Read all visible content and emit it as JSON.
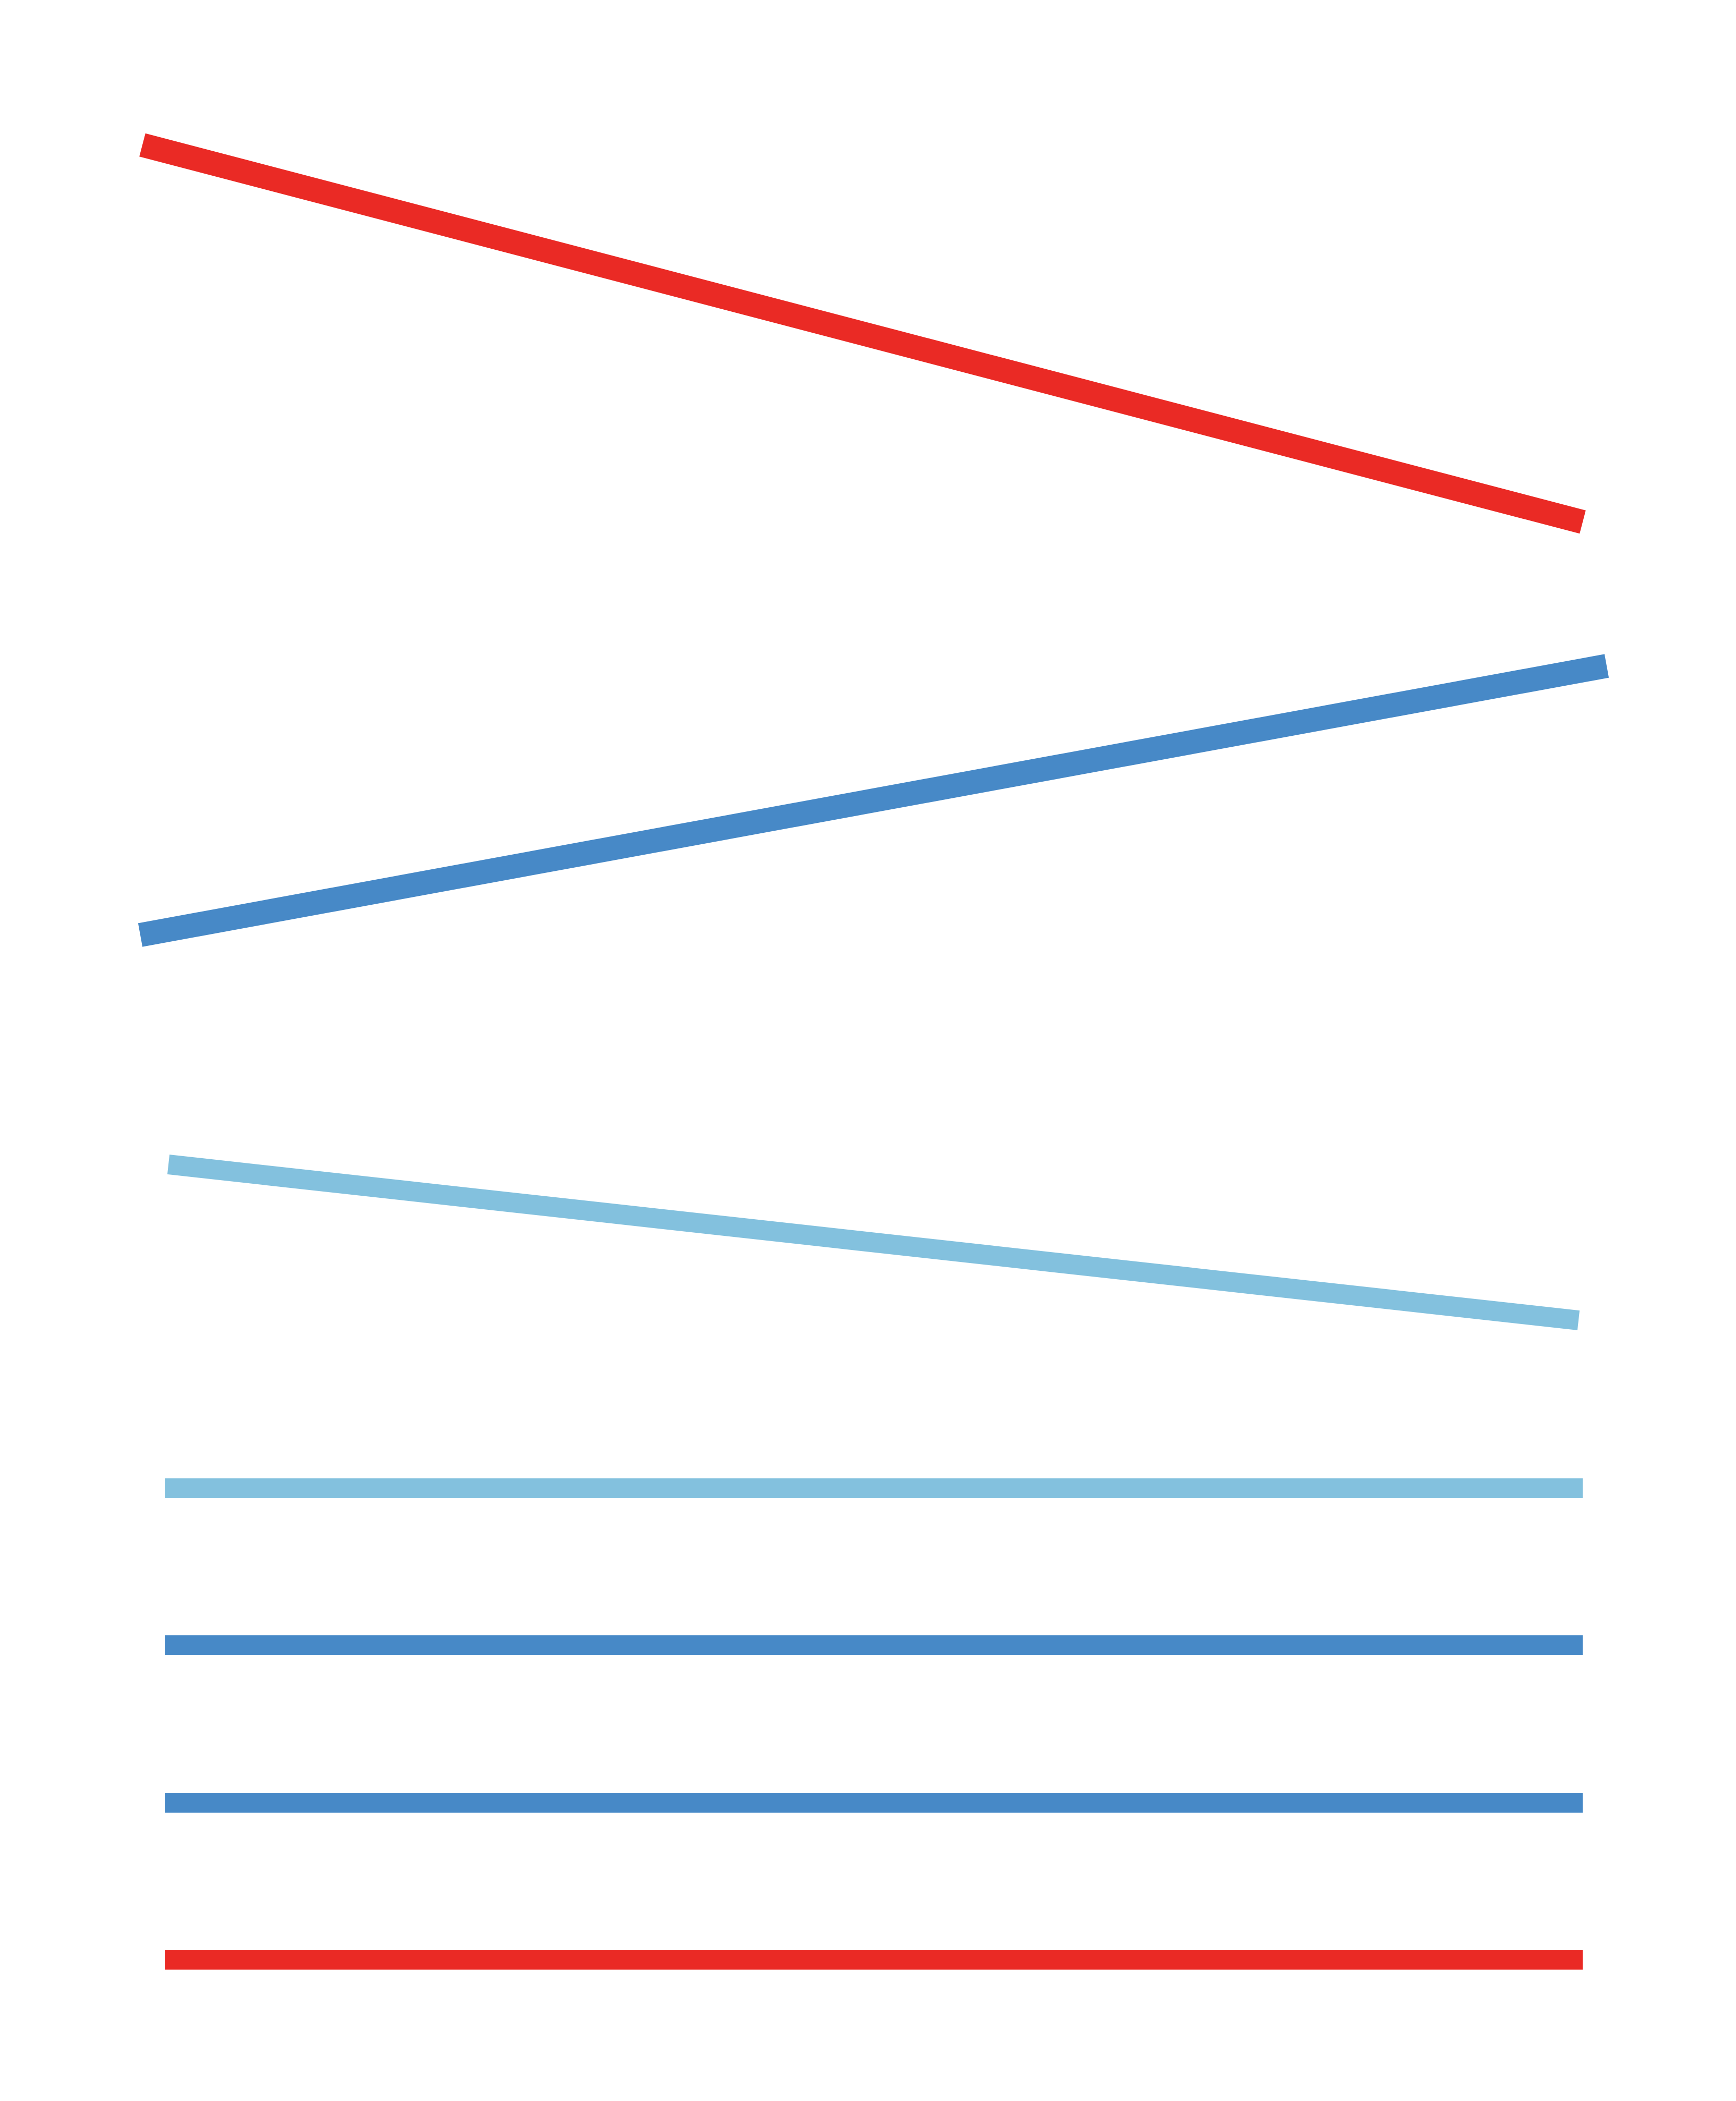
{
  "colors": {
    "red": "#ea2a25",
    "blue": "#4789c7",
    "light_blue": "#83c1de",
    "background": "#ffffff"
  },
  "lines": [
    {
      "name": "red-line-descending",
      "color_key": "red",
      "kind": "sloped"
    },
    {
      "name": "blue-line-ascending",
      "color_key": "blue",
      "kind": "sloped"
    },
    {
      "name": "light-blue-line-descending",
      "color_key": "light_blue",
      "kind": "sloped"
    },
    {
      "name": "light-blue-line-horizontal",
      "color_key": "light_blue",
      "kind": "horizontal"
    },
    {
      "name": "blue-line-horizontal-1",
      "color_key": "blue",
      "kind": "horizontal"
    },
    {
      "name": "blue-line-horizontal-2",
      "color_key": "blue",
      "kind": "horizontal"
    },
    {
      "name": "red-line-horizontal",
      "color_key": "red",
      "kind": "horizontal"
    }
  ]
}
